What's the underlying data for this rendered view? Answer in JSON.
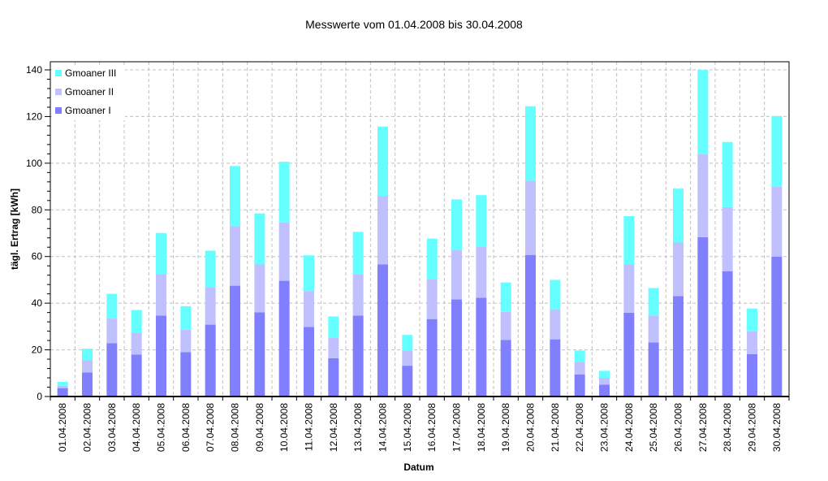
{
  "chart_data": {
    "type": "bar",
    "stacked": true,
    "title": "Messwerte vom 01.04.2008 bis 30.04.2008",
    "xlabel": "Datum",
    "ylabel": "tägl. Ertrag [kWh]",
    "ylim": [
      0,
      140
    ],
    "yticks": [
      0,
      20,
      40,
      60,
      80,
      100,
      120,
      140
    ],
    "grid": true,
    "legend_position": "top-left-inside",
    "categories": [
      "01.04.2008",
      "02.04.2008",
      "03.04.2008",
      "04.04.2008",
      "05.04.2008",
      "06.04.2008",
      "07.04.2008",
      "08.04.2008",
      "09.04.2008",
      "10.04.2008",
      "11.04.2008",
      "12.04.2008",
      "13.04.2008",
      "14.04.2008",
      "15.04.2008",
      "16.04.2008",
      "17.04.2008",
      "18.04.2008",
      "19.04.2008",
      "20.04.2008",
      "21.04.2008",
      "22.04.2008",
      "23.04.2008",
      "24.04.2008",
      "25.04.2008",
      "26.04.2008",
      "27.04.2008",
      "28.04.2008",
      "29.04.2008",
      "30.04.2008"
    ],
    "series": [
      {
        "name": "Gmoaner I",
        "color": "#8080ff",
        "values": [
          3.6,
          10.3,
          22.9,
          18.0,
          34.7,
          19.0,
          30.8,
          47.5,
          36.1,
          49.6,
          29.8,
          16.4,
          34.7,
          56.6,
          13.2,
          33.2,
          41.6,
          42.3,
          24.2,
          60.7,
          24.5,
          9.5,
          5.1,
          35.9,
          23.2,
          43.0,
          68.3,
          53.7,
          18.2,
          59.9
        ]
      },
      {
        "name": "Gmoaner II",
        "color": "#c0c0ff",
        "values": [
          1.0,
          5.2,
          10.5,
          9.3,
          17.7,
          9.6,
          16.0,
          25.5,
          20.5,
          25.0,
          15.4,
          8.8,
          17.8,
          29.4,
          6.6,
          17.1,
          21.3,
          21.9,
          12.1,
          31.8,
          12.9,
          5.3,
          2.9,
          20.7,
          11.5,
          23.0,
          35.5,
          27.5,
          9.7,
          30.0
        ]
      },
      {
        "name": "Gmoaner III",
        "color": "#66ffff",
        "values": [
          1.7,
          5.0,
          10.6,
          9.8,
          17.7,
          10.1,
          15.7,
          25.8,
          21.9,
          26.0,
          15.3,
          9.1,
          18.1,
          29.7,
          6.6,
          17.4,
          21.6,
          22.1,
          12.6,
          31.9,
          12.6,
          4.9,
          3.0,
          20.7,
          11.8,
          23.1,
          36.2,
          27.9,
          9.8,
          30.3
        ]
      }
    ]
  }
}
